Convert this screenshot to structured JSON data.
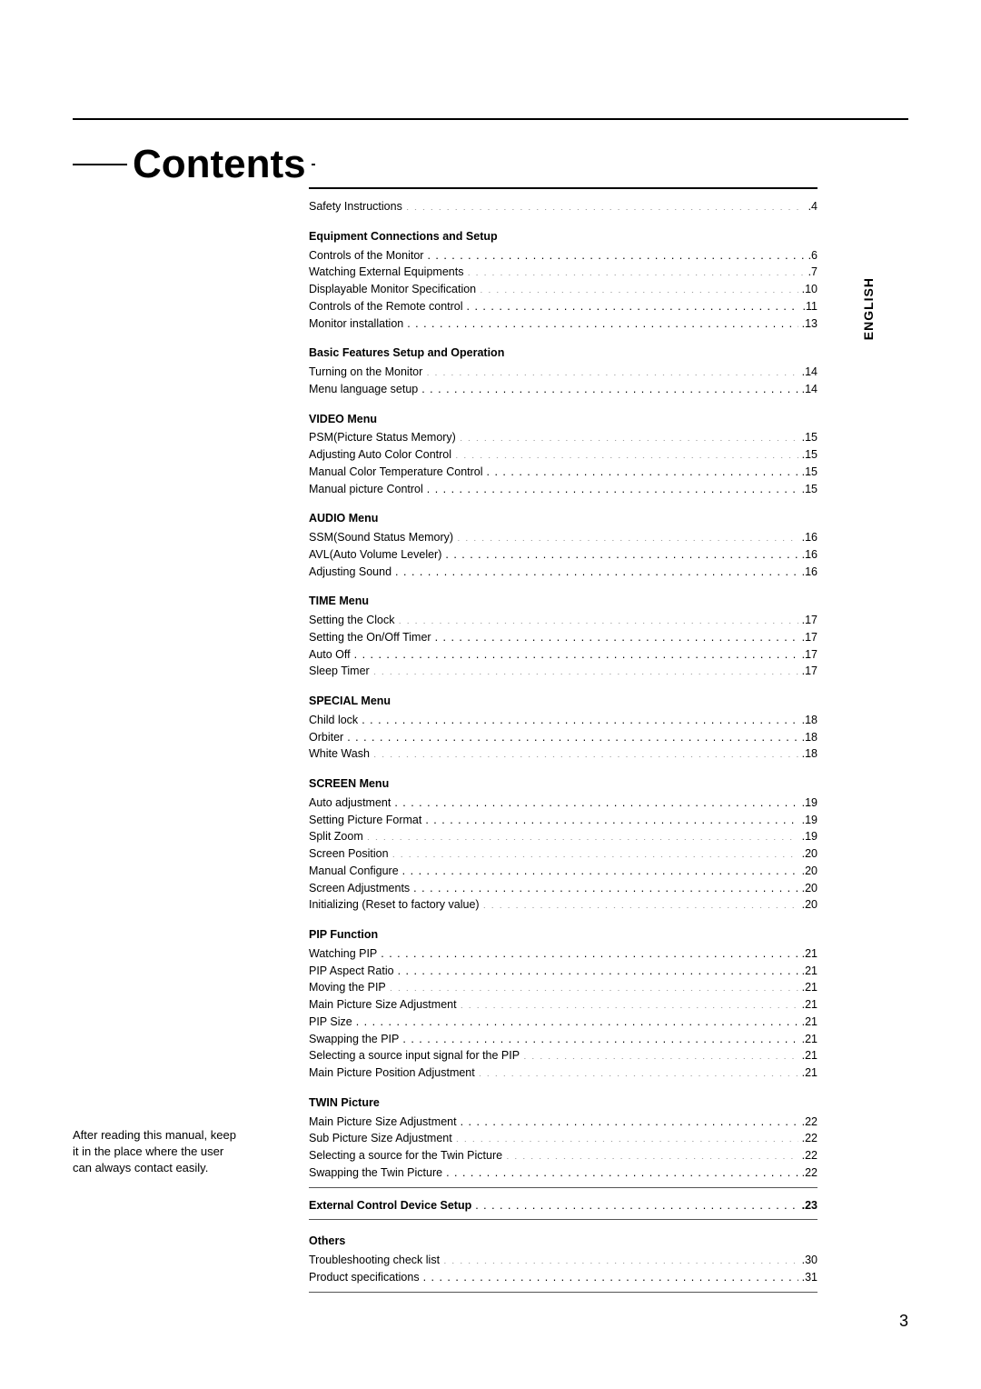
{
  "page": {
    "title": "Contents",
    "language_tab": "ENGLISH",
    "page_number": "3",
    "footnote": "After reading this manual, keep it in the place where the user can always contact easily."
  },
  "toc": {
    "top": [
      {
        "label": "Safety Instructions",
        "page": "4",
        "bold": false
      }
    ],
    "sections": [
      {
        "title": "Equipment Connections and Setup",
        "items": [
          {
            "label": "Controls of the Monitor",
            "page": "6"
          },
          {
            "label": "Watching External Equipments",
            "page": "7"
          },
          {
            "label": "Displayable Monitor Specification",
            "page": "10"
          },
          {
            "label": "Controls of the Remote control",
            "page": "11"
          },
          {
            "label": "Monitor installation",
            "page": "13"
          }
        ]
      },
      {
        "title": "Basic Features Setup and Operation",
        "items": [
          {
            "label": "Turning on the Monitor",
            "page": "14"
          },
          {
            "label": "Menu language setup",
            "page": "14"
          }
        ]
      },
      {
        "title": "VIDEO Menu",
        "items": [
          {
            "label": "PSM(Picture Status Memory)",
            "page": "15"
          },
          {
            "label": "Adjusting Auto Color Control",
            "page": "15"
          },
          {
            "label": "Manual Color Temperature Control",
            "page": "15"
          },
          {
            "label": "Manual picture Control",
            "page": "15"
          }
        ]
      },
      {
        "title": "AUDIO Menu",
        "items": [
          {
            "label": "SSM(Sound Status Memory)",
            "page": "16"
          },
          {
            "label": "AVL(Auto Volume Leveler)",
            "page": "16"
          },
          {
            "label": "Adjusting Sound",
            "page": "16"
          }
        ]
      },
      {
        "title": "TIME Menu",
        "items": [
          {
            "label": "Setting the Clock",
            "page": "17"
          },
          {
            "label": "Setting the On/Off Timer",
            "page": "17"
          },
          {
            "label": "Auto Off",
            "page": "17"
          },
          {
            "label": "Sleep Timer",
            "page": "17"
          }
        ]
      },
      {
        "title": "SPECIAL Menu",
        "items": [
          {
            "label": "Child lock",
            "page": "18"
          },
          {
            "label": "Orbiter",
            "page": "18"
          },
          {
            "label": "White Wash",
            "page": "18"
          }
        ]
      },
      {
        "title": "SCREEN Menu",
        "items": [
          {
            "label": "Auto adjustment",
            "page": "19"
          },
          {
            "label": "Setting Picture Format",
            "page": "19"
          },
          {
            "label": "Split Zoom",
            "page": "19"
          },
          {
            "label": "Screen Position",
            "page": "20"
          },
          {
            "label": "Manual Configure",
            "page": "20"
          },
          {
            "label": "Screen Adjustments",
            "page": "20"
          },
          {
            "label": "Initializing (Reset to factory value)",
            "page": "20"
          }
        ]
      },
      {
        "title": "PIP Function",
        "items": [
          {
            "label": "Watching PIP",
            "page": "21"
          },
          {
            "label": "PIP Aspect Ratio",
            "page": "21"
          },
          {
            "label": "Moving the PIP",
            "page": "21"
          },
          {
            "label": "Main Picture Size Adjustment",
            "page": "21"
          },
          {
            "label": "PIP Size",
            "page": "21"
          },
          {
            "label": "Swapping the PIP",
            "page": "21"
          },
          {
            "label": "Selecting a source input signal for the PIP",
            "page": "21"
          },
          {
            "label": "Main Picture Position Adjustment",
            "page": "21"
          }
        ]
      },
      {
        "title": "TWIN Picture",
        "items": [
          {
            "label": "Main Picture Size Adjustment",
            "page": "22"
          },
          {
            "label": "Sub Picture Size Adjustment",
            "page": "22"
          },
          {
            "label": "Selecting a source for the Twin Picture",
            "page": "22"
          },
          {
            "label": "Swapping the Twin Picture",
            "page": "22"
          }
        ]
      }
    ],
    "standalone": [
      {
        "label": "External Control Device Setup",
        "page": "23",
        "bold": true
      }
    ],
    "others": {
      "title": "Others",
      "items": [
        {
          "label": "Troubleshooting check list",
          "page": "30"
        },
        {
          "label": "Product specifications",
          "page": "31"
        }
      ]
    }
  }
}
